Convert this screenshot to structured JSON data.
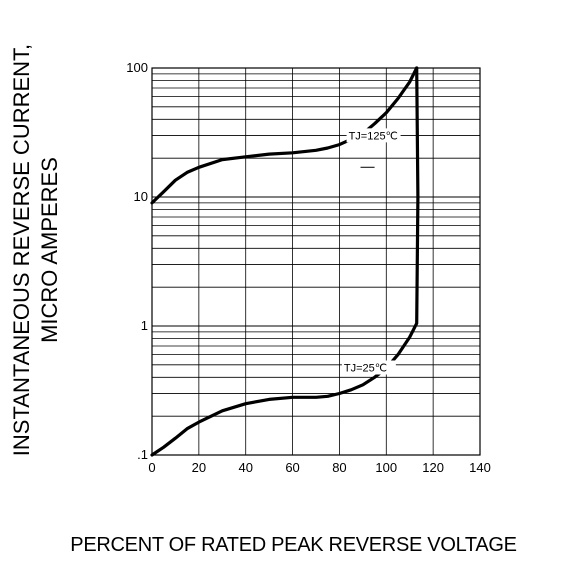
{
  "chart_data": {
    "type": "line",
    "title": "",
    "xlabel": "PERCENT OF RATED PEAK REVERSE VOLTAGE",
    "ylabel": [
      "INSTANTANEOUS REVERSE CURRENT,",
      "MICRO AMPERES"
    ],
    "x_ticks": [
      "0",
      "20",
      "40",
      "60",
      "80",
      "100",
      "120",
      "140"
    ],
    "y_ticks": [
      "100",
      "10",
      "1",
      ".1"
    ],
    "xlim": [
      0,
      140
    ],
    "ylim": [
      0.1,
      100
    ],
    "yscale": "log",
    "grid": true,
    "line_color": "#000000",
    "series": [
      {
        "name": "TJ=125℃",
        "label_text": "TJ=125℃",
        "x": [
          0,
          5,
          10,
          15,
          20,
          30,
          40,
          50,
          60,
          70,
          75,
          80,
          85,
          90,
          95,
          100,
          105,
          110,
          113
        ],
        "y": [
          9,
          11,
          13.5,
          15.5,
          17,
          19.5,
          20.5,
          21.5,
          22,
          23,
          24,
          25.5,
          28,
          31,
          37,
          45,
          58,
          78,
          100
        ]
      },
      {
        "name": "TJ=25℃",
        "label_text": "TJ=25℃",
        "x": [
          0,
          5,
          10,
          15,
          20,
          30,
          40,
          50,
          60,
          70,
          75,
          80,
          85,
          90,
          95,
          100,
          105,
          110,
          113,
          113.5,
          113
        ],
        "y": [
          0.1,
          0.115,
          0.135,
          0.16,
          0.18,
          0.22,
          0.25,
          0.27,
          0.28,
          0.28,
          0.285,
          0.3,
          0.32,
          0.35,
          0.4,
          0.47,
          0.6,
          0.82,
          1.05,
          10,
          100
        ]
      }
    ]
  }
}
